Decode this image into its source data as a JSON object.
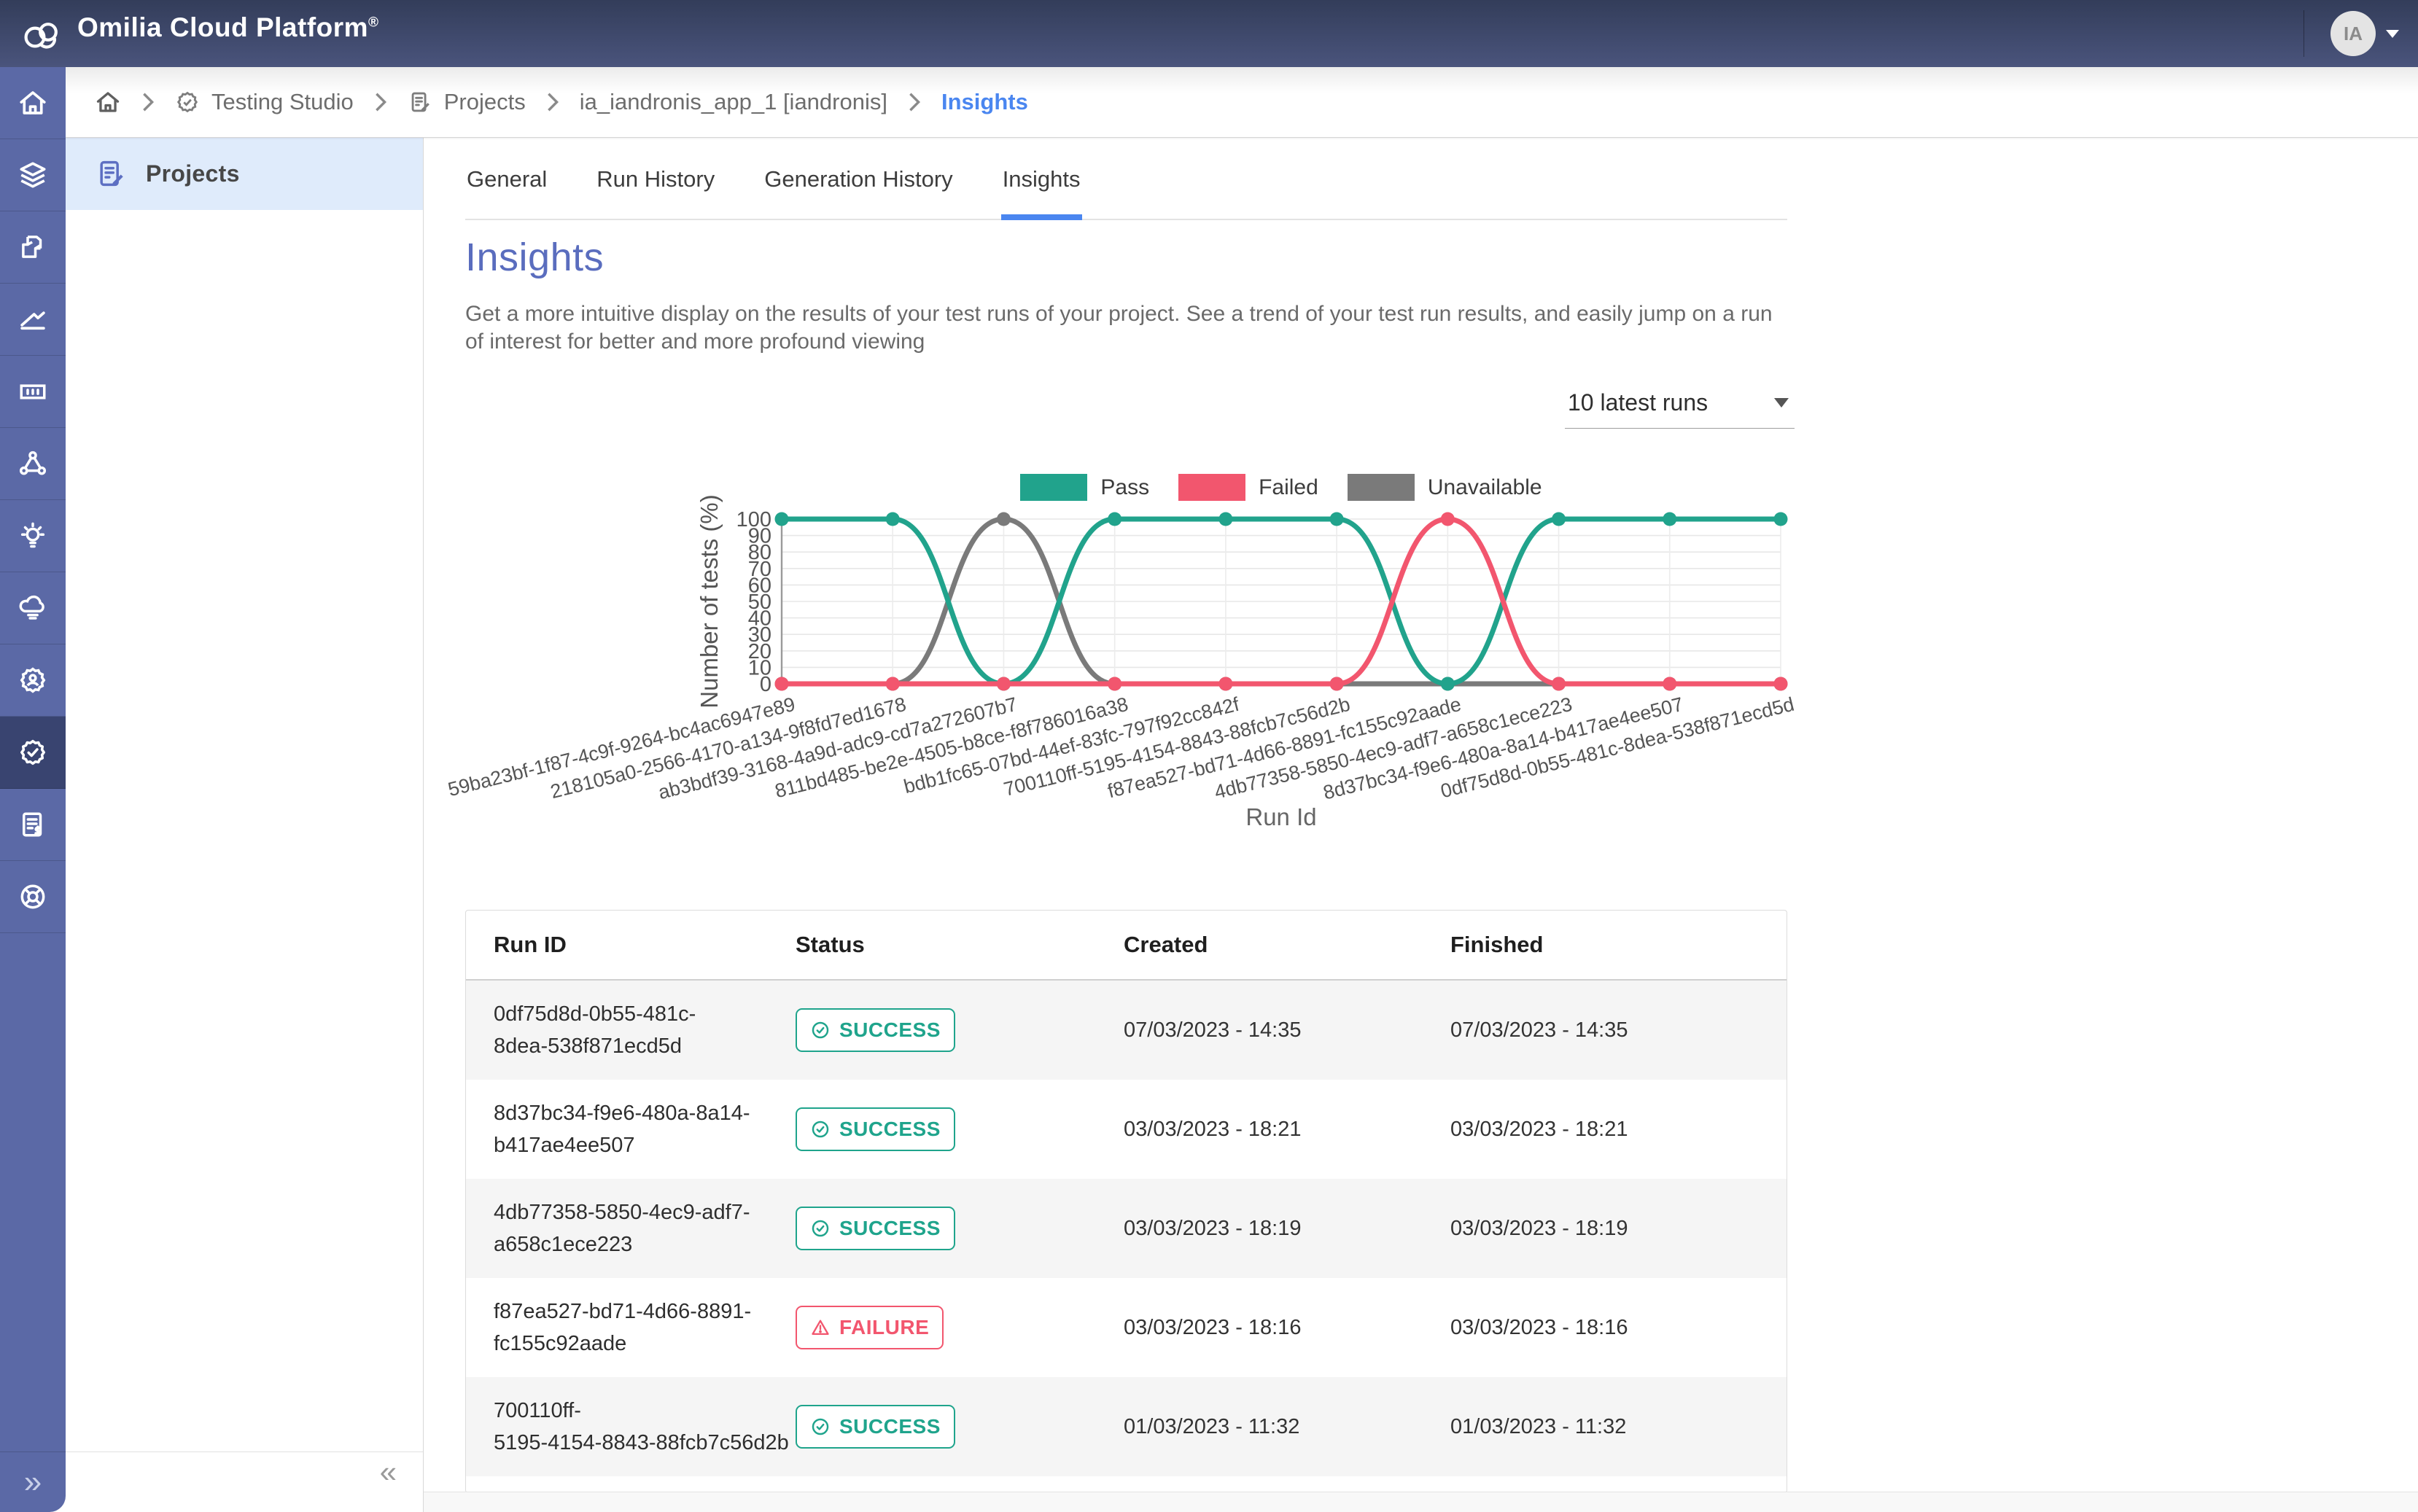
{
  "colors": {
    "header_bg_top": "#333d5a",
    "header_bg_bottom": "#4a547c",
    "rail_bg": "#5b69a6",
    "rail_active_bg": "#394470",
    "accent_blue": "#4a86f0",
    "title_purple": "#5a6dbe",
    "success": "#1fa48c",
    "failure": "#f2566e",
    "unavailable": "#7a7a7a",
    "row_stripe": "#f5f5f5"
  },
  "header": {
    "app_title": "Omilia Cloud Platform",
    "registered_mark": "®",
    "avatar_initials": "IA"
  },
  "sidebar": {
    "icons": [
      "home-icon",
      "layers-icon",
      "blocks-icon",
      "trend-icon",
      "card-icon",
      "network-icon",
      "bulb-icon",
      "cloud-icon",
      "gear-user-icon",
      "gear-check-icon",
      "invoice-icon",
      "lifebuoy-icon"
    ],
    "active_index": 9,
    "expand_glyph": "»"
  },
  "secondary_sidebar": {
    "items": [
      {
        "label": "Projects",
        "icon": "document-edit-icon"
      }
    ],
    "collapse_glyph": "«"
  },
  "breadcrumb": {
    "items": [
      {
        "label": "",
        "icon": "home-icon"
      },
      {
        "label": "Testing Studio",
        "icon": "badge-check-icon"
      },
      {
        "label": "Projects",
        "icon": "document-edit-icon"
      },
      {
        "label": "ia_iandronis_app_1 [iandronis]"
      },
      {
        "label": "Insights",
        "current": true
      }
    ]
  },
  "tabs": [
    {
      "label": "General"
    },
    {
      "label": "Run History"
    },
    {
      "label": "Generation History"
    },
    {
      "label": "Insights",
      "active": true
    }
  ],
  "page": {
    "title": "Insights",
    "description": "Get a more intuitive display on the results of your test runs of your project. See a trend of your test run results, and easily jump on a run of interest for better and more profound viewing"
  },
  "runs_filter": {
    "selected": "10 latest runs"
  },
  "chart_data": {
    "type": "line",
    "title": "",
    "xlabel": "Run Id",
    "ylabel": "Number of tests (%)",
    "ylim": [
      0,
      100
    ],
    "y_ticks": [
      0,
      10,
      20,
      30,
      40,
      50,
      60,
      70,
      80,
      90,
      100
    ],
    "grid": true,
    "legend_position": "top",
    "categories": [
      "59ba23bf-1f87-4c9f-9264-bc4ac6947e89",
      "218105a0-2566-4170-a134-9f8fd7ed1678",
      "ab3bdf39-3168-4a9d-adc9-cd7a272607b7",
      "811bd485-be2e-4505-b8ce-f8f786016a38",
      "bdb1fc65-07bd-44ef-83fc-797f92cc842f",
      "700110ff-5195-4154-8843-88fcb7c56d2b",
      "f87ea527-bd71-4d66-8891-fc155c92aade",
      "4db77358-5850-4ec9-adf7-a658c1ece223",
      "8d37bc34-f9e6-480a-8a14-b417ae4ee507",
      "0df75d8d-0b55-481c-8dea-538f871ecd5d"
    ],
    "series": [
      {
        "name": "Unavailable",
        "color": "#7a7a7a",
        "values": [
          0,
          0,
          100,
          0,
          0,
          0,
          0,
          0,
          0,
          0
        ]
      },
      {
        "name": "Pass",
        "color": "#21a38c",
        "values": [
          100,
          100,
          0,
          100,
          100,
          100,
          0,
          100,
          100,
          100
        ]
      },
      {
        "name": "Failed",
        "color": "#f2566e",
        "values": [
          0,
          0,
          0,
          0,
          0,
          0,
          100,
          0,
          0,
          0
        ]
      }
    ],
    "legend_order": [
      "Pass",
      "Failed",
      "Unavailable"
    ]
  },
  "table": {
    "headers": [
      "Run ID",
      "Status",
      "Created",
      "Finished"
    ],
    "rows": [
      {
        "run_id_line1": "0df75d8d-0b55-481c-",
        "run_id_line2": "8dea-538f871ecd5d",
        "status": "SUCCESS",
        "created": "07/03/2023 - 14:35",
        "finished": "07/03/2023 - 14:35"
      },
      {
        "run_id_line1": "8d37bc34-f9e6-480a-8a14-",
        "run_id_line2": "b417ae4ee507",
        "status": "SUCCESS",
        "created": "03/03/2023 - 18:21",
        "finished": "03/03/2023 - 18:21"
      },
      {
        "run_id_line1": "4db77358-5850-4ec9-adf7-",
        "run_id_line2": "a658c1ece223",
        "status": "SUCCESS",
        "created": "03/03/2023 - 18:19",
        "finished": "03/03/2023 - 18:19"
      },
      {
        "run_id_line1": "f87ea527-bd71-4d66-8891-",
        "run_id_line2": "fc155c92aade",
        "status": "FAILURE",
        "created": "03/03/2023 - 18:16",
        "finished": "03/03/2023 - 18:16"
      },
      {
        "run_id_line1": "700110ff-",
        "run_id_line2": "5195-4154-8843-88fcb7c56d2b",
        "status": "SUCCESS",
        "created": "01/03/2023 - 11:32",
        "finished": "01/03/2023 - 11:32"
      }
    ]
  }
}
